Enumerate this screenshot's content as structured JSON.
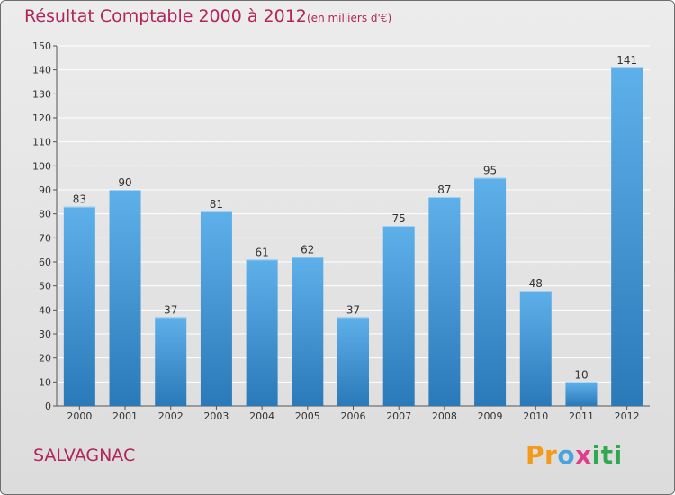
{
  "header": {
    "title": "Résultat Comptable 2000 à 2012",
    "subtitle": "(en milliers d'€)"
  },
  "footer": {
    "place": "SALVAGNAC",
    "logo_text": "Proxiti"
  },
  "colors": {
    "title": "#b2245a",
    "bar_top": "#5eb0ea",
    "bar_bottom": "#2a79b9",
    "grid": "#ffffff"
  },
  "chart_data": {
    "type": "bar",
    "title": "Résultat Comptable 2000 à 2012",
    "subtitle": "(en milliers d'€)",
    "xlabel": "",
    "ylabel": "",
    "categories": [
      "2000",
      "2001",
      "2002",
      "2003",
      "2004",
      "2005",
      "2006",
      "2007",
      "2008",
      "2009",
      "2010",
      "2011",
      "2012"
    ],
    "values": [
      83,
      90,
      37,
      81,
      61,
      62,
      37,
      75,
      87,
      95,
      48,
      10,
      141
    ],
    "ylim": [
      0,
      150
    ],
    "yticks": [
      0,
      10,
      20,
      30,
      40,
      50,
      60,
      70,
      80,
      90,
      100,
      110,
      120,
      130,
      140,
      150
    ],
    "grid": true,
    "legend": "none"
  }
}
